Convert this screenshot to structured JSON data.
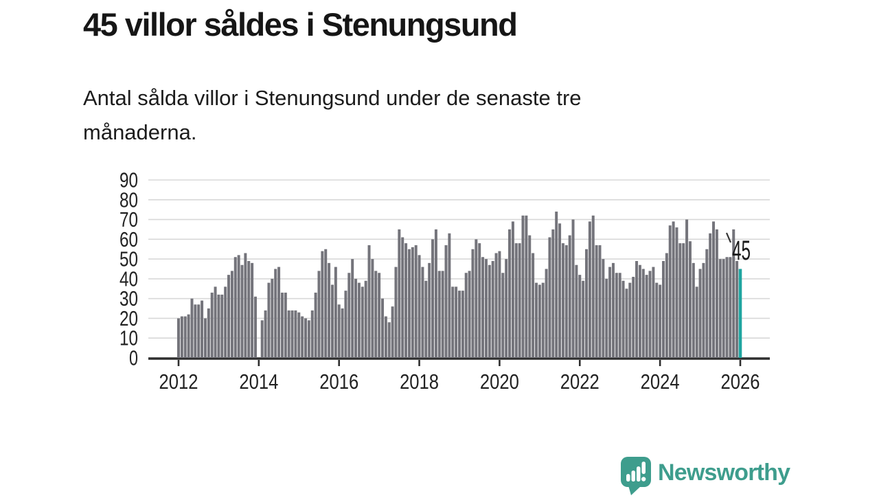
{
  "header": {
    "title": "45 villor såldes i Stenungsund",
    "subtitle": "Antal sålda villor i Stenungsund under de senaste tre månaderna."
  },
  "chart_data": {
    "type": "bar",
    "title": "45 villor såldes i Stenungsund",
    "subtitle": "Antal sålda villor i Stenungsund under de senaste tre månaderna.",
    "frequency": "monthly",
    "x_start": "2012-01",
    "x_end": "2026-01",
    "missing_months": [
      "2014-01"
    ],
    "values": [
      20,
      21,
      21,
      22,
      30,
      27,
      27,
      29,
      20,
      25,
      33,
      36,
      32,
      32,
      36,
      42,
      44,
      51,
      52,
      47,
      53,
      49,
      48,
      31,
      0,
      19,
      24,
      38,
      40,
      45,
      46,
      33,
      33,
      24,
      24,
      24,
      23,
      21,
      20,
      19,
      24,
      33,
      44,
      54,
      55,
      48,
      37,
      46,
      27,
      25,
      34,
      43,
      50,
      40,
      38,
      36,
      39,
      57,
      50,
      44,
      43,
      30,
      21,
      18,
      26,
      46,
      65,
      61,
      58,
      55,
      56,
      57,
      52,
      46,
      39,
      48,
      60,
      65,
      44,
      44,
      57,
      63,
      36,
      36,
      34,
      34,
      43,
      44,
      55,
      60,
      58,
      51,
      50,
      47,
      49,
      53,
      54,
      43,
      50,
      65,
      69,
      58,
      58,
      72,
      72,
      62,
      53,
      38,
      37,
      38,
      45,
      61,
      65,
      74,
      68,
      58,
      57,
      62,
      70,
      47,
      42,
      39,
      55,
      69,
      72,
      57,
      57,
      50,
      40,
      46,
      48,
      43,
      43,
      39,
      35,
      38,
      41,
      49,
      47,
      45,
      42,
      44,
      46,
      38,
      37,
      49,
      53,
      67,
      69,
      66,
      58,
      58,
      70,
      59,
      48,
      36,
      45,
      48,
      55,
      63,
      69,
      65,
      50,
      50,
      51,
      51,
      65,
      49,
      45
    ],
    "x_tick_labels": [
      "2012",
      "2014",
      "2016",
      "2018",
      "2020",
      "2022",
      "2024",
      "2026"
    ],
    "y_ticks": [
      0,
      10,
      20,
      30,
      40,
      50,
      60,
      70,
      80,
      90
    ],
    "ylim": [
      0,
      90
    ],
    "xlabel": "",
    "ylabel": "",
    "grid": true,
    "legend": "none",
    "highlight": {
      "position": "2026-01",
      "value": 45,
      "label": "45"
    },
    "colors": {
      "bar": "#74747b",
      "highlight": "#1fa5a0",
      "grid": "#d8d8d8",
      "axis": "#2e2e2e",
      "tick_text": "#222222",
      "annotation_text": "#1a1a1a"
    }
  },
  "footer": {
    "brand": "Newsworthy",
    "brand_color": "#3e9d8d",
    "logo_icon": "bar-chart-speech-bubble"
  }
}
